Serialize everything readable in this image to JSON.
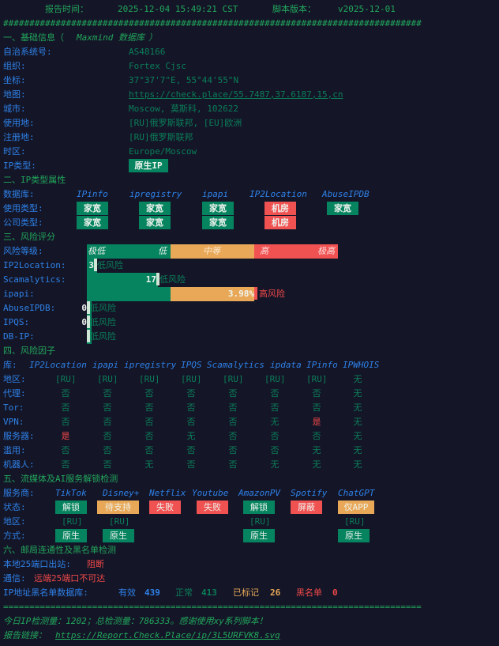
{
  "header": {
    "report_time_label": "报告时间：",
    "report_time": "2025-12-04 15:49:21 CST",
    "version_label": "脚本版本：",
    "version": "v2025-12-01"
  },
  "divider_hash": "################################################################################",
  "divider_eq": "================================================================================",
  "basic": {
    "title": "一、基础信息（",
    "title_db": "Maxmind 数据库",
    "title_end": "）",
    "rows": [
      {
        "label": "自治系统号:",
        "value": "AS48166"
      },
      {
        "label": "组织:",
        "value": "Fortex Cjsc"
      },
      {
        "label": "坐标:",
        "value": "37°37'7\"E, 55°44'55\"N"
      },
      {
        "label": "地图:",
        "value": "https://check.place/55.7487,37.6187,15,cn"
      },
      {
        "label": "城市:",
        "value": "Moscow, 莫斯科, 102622"
      },
      {
        "label": "使用地:",
        "value": "[RU]俄罗斯联邦, [EU]欧洲"
      },
      {
        "label": "注册地:",
        "value": "[RU]俄罗斯联邦"
      },
      {
        "label": "时区:",
        "value": "Europe/Moscow"
      }
    ],
    "ip_type_label": "IP类型:",
    "ip_type": "原生IP"
  },
  "ip_type": {
    "title": "二、IP类型属性",
    "db_label": "数据库:",
    "usage_label": "使用类型:",
    "company_label": "公司类型:",
    "databases": [
      {
        "name": "IPinfo",
        "usage": "家宽",
        "company": "家宽",
        "usage_color": "#06845f",
        "company_color": "#06845f"
      },
      {
        "name": "ipregistry",
        "usage": "家宽",
        "company": "家宽",
        "usage_color": "#06845f",
        "company_color": "#06845f"
      },
      {
        "name": "ipapi",
        "usage": "家宽",
        "company": "家宽",
        "usage_color": "#06845f",
        "company_color": "#06845f"
      },
      {
        "name": "IP2Location",
        "usage": "机房",
        "company": "机房",
        "usage_color": "#f05252",
        "company_color": "#f05252"
      },
      {
        "name": "AbuseIPDB",
        "usage": "家宽",
        "company": null,
        "usage_color": "#06845f"
      }
    ]
  },
  "risk": {
    "title": "三、风险评分",
    "level_label": "风险等级:",
    "scale": [
      "极低",
      "低",
      "中等",
      "高",
      "极高"
    ],
    "rows": [
      {
        "label": "IP2Location:",
        "score": "3",
        "verdict": "低风险",
        "level": "low"
      },
      {
        "label": "Scamalytics:",
        "score": "17",
        "verdict": "低风险",
        "level": "low"
      },
      {
        "label": "ipapi:",
        "score": "3.98%",
        "verdict": "高风险",
        "level": "high"
      },
      {
        "label": "AbuseIPDB:",
        "score": "0",
        "verdict": "低风险",
        "level": "low"
      },
      {
        "label": "IPQS:",
        "score": "0",
        "verdict": "低风险",
        "level": "low"
      },
      {
        "label": "DB-IP:",
        "score": "",
        "verdict": "低风险",
        "level": "low"
      }
    ]
  },
  "factors": {
    "title": "四、风险因子",
    "db_label": "库:",
    "databases": [
      "IP2Location",
      "ipapi",
      "ipregistry",
      "IPQS",
      "Scamalytics",
      "ipdata",
      "IPinfo",
      "IPWHOIS"
    ],
    "rows": [
      {
        "label": "地区:",
        "values": [
          "[RU]",
          "[RU]",
          "[RU]",
          "[RU]",
          "[RU]",
          "[RU]",
          "[RU]",
          "无"
        ]
      },
      {
        "label": "代理:",
        "values": [
          "否",
          "否",
          "否",
          "否",
          "否",
          "否",
          "否",
          "无"
        ]
      },
      {
        "label": "Tor:",
        "values": [
          "否",
          "否",
          "否",
          "否",
          "否",
          "否",
          "否",
          "无"
        ]
      },
      {
        "label": "VPN:",
        "values": [
          "否",
          "否",
          "否",
          "否",
          "否",
          "无",
          "是",
          "无"
        ]
      },
      {
        "label": "服务器:",
        "values": [
          "是",
          "否",
          "否",
          "无",
          "否",
          "否",
          "否",
          "无"
        ]
      },
      {
        "label": "滥用:",
        "values": [
          "否",
          "否",
          "否",
          "否",
          "否",
          "否",
          "无",
          "无"
        ]
      },
      {
        "label": "机器人:",
        "values": [
          "否",
          "否",
          "无",
          "否",
          "否",
          "无",
          "无",
          "无"
        ]
      }
    ]
  },
  "streaming": {
    "title": "五、流媒体及AI服务解锁检测",
    "provider_label": "服务商:",
    "status_label": "状态:",
    "region_label": "地区:",
    "method_label": "方式:",
    "services": [
      {
        "name": "TikTok",
        "status": "解锁",
        "status_color": "#06845f",
        "region": "[RU]",
        "method": "原生"
      },
      {
        "name": "Disney+",
        "status": "待支持",
        "status_color": "#e9a857",
        "region": "[RU]",
        "method": "原生"
      },
      {
        "name": "Netflix",
        "status": "失败",
        "status_color": "#f05252",
        "region": "",
        "method": ""
      },
      {
        "name": "Youtube",
        "status": "失败",
        "status_color": "#f05252",
        "region": "",
        "method": ""
      },
      {
        "name": "AmazonPV",
        "status": "解锁",
        "status_color": "#06845f",
        "region": "[RU]",
        "method": "原生"
      },
      {
        "name": "Spotify",
        "status": "屏蔽",
        "status_color": "#f05252",
        "region": "",
        "method": ""
      },
      {
        "name": "ChatGPT",
        "status": "仅APP",
        "status_color": "#e9a857",
        "region": "[RU]",
        "method": "原生"
      }
    ]
  },
  "mail": {
    "title": "六、邮局连通性及黑名单检测",
    "port25_label": "本地25端口出站:",
    "port25_value": "阻断",
    "comm_label": "通信:",
    "comm_value": "远端25端口不可达",
    "blacklist_label": "IP地址黑名单数据库:",
    "valid_label": "有效",
    "valid": "439",
    "normal_label": "正常",
    "normal": "413",
    "marked_label": "已标记",
    "marked": "26",
    "black_label": "黑名单",
    "black": "0"
  },
  "footer": {
    "stats": "今日IP检测量：1202；总检测量：786333。感谢使用xy系列脚本！",
    "link_label": "报告链接：",
    "link": "https://Report.Check.Place/ip/3L5URFVK8.svg"
  }
}
